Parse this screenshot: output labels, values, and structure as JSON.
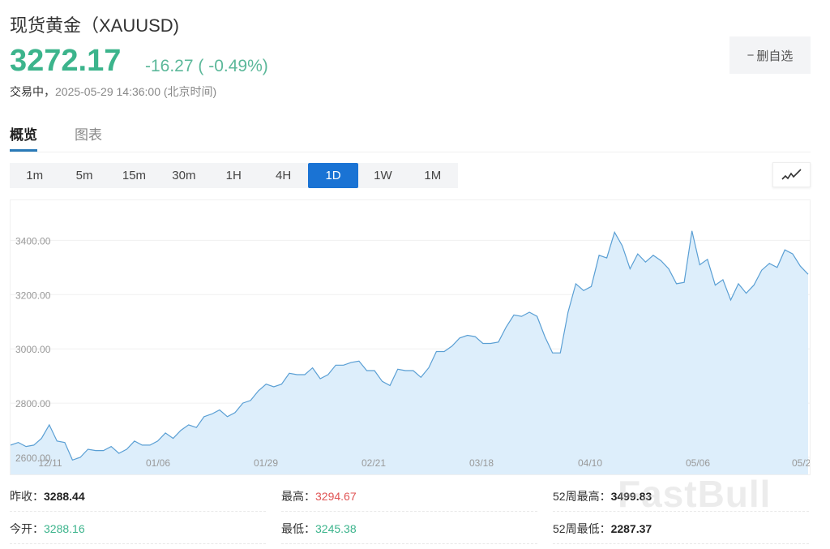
{
  "header": {
    "title": "现货黄金（XAUUSD)",
    "price": "3272.17",
    "change": "-16.27 ( -0.49%)",
    "status_label": "交易中，",
    "timestamp": "2025-05-29 14:36:00 (北京时间)",
    "watchlist_button": "删自选",
    "watchlist_icon": "minus-icon"
  },
  "tabs": [
    {
      "label": "概览",
      "active": true
    },
    {
      "label": "图表",
      "active": false
    }
  ],
  "periods": [
    "1m",
    "5m",
    "15m",
    "30m",
    "1H",
    "4H",
    "1D",
    "1W",
    "1M"
  ],
  "active_period": "1D",
  "chart_type_icon": "line-chart-icon",
  "colors": {
    "up": "#e05555",
    "down": "#3cb48c",
    "line": "#5a9fd4",
    "area": "#ddeefb",
    "active": "#1a73d4"
  },
  "chart_data": {
    "type": "area",
    "ylim": [
      2600,
      3500
    ],
    "y_ticks": [
      "2600.00",
      "2800.00",
      "3000.00",
      "3200.00",
      "3400.00"
    ],
    "y_tick_values": [
      2600,
      2800,
      3000,
      3200,
      3400
    ],
    "x_ticks": [
      "12/11",
      "01/06",
      "01/29",
      "02/21",
      "03/18",
      "04/10",
      "05/06",
      "05/2"
    ],
    "grid": true,
    "values": [
      2645,
      2655,
      2640,
      2645,
      2670,
      2720,
      2660,
      2655,
      2590,
      2600,
      2630,
      2625,
      2625,
      2640,
      2615,
      2630,
      2660,
      2645,
      2645,
      2660,
      2690,
      2670,
      2700,
      2720,
      2710,
      2750,
      2760,
      2775,
      2750,
      2765,
      2800,
      2810,
      2845,
      2870,
      2860,
      2870,
      2910,
      2905,
      2905,
      2930,
      2890,
      2905,
      2940,
      2940,
      2950,
      2955,
      2920,
      2920,
      2880,
      2865,
      2925,
      2920,
      2920,
      2895,
      2930,
      2990,
      2990,
      3010,
      3040,
      3050,
      3045,
      3020,
      3020,
      3025,
      3080,
      3125,
      3120,
      3135,
      3120,
      3045,
      2985,
      2985,
      3135,
      3240,
      3215,
      3230,
      3345,
      3335,
      3430,
      3380,
      3295,
      3350,
      3320,
      3345,
      3325,
      3295,
      3240,
      3245,
      3435,
      3310,
      3330,
      3235,
      3255,
      3180,
      3240,
      3205,
      3235,
      3290,
      3315,
      3300,
      3365,
      3350,
      3305,
      3275
    ]
  },
  "stats": [
    {
      "label": "昨收：",
      "value": "3288.44",
      "tone": "neutral"
    },
    {
      "label": "最高：",
      "value": "3294.67",
      "tone": "up"
    },
    {
      "label": "52周最高：",
      "value": "3499.83",
      "tone": "neutral"
    },
    {
      "label": "今开：",
      "value": "3288.16",
      "tone": "down"
    },
    {
      "label": "最低：",
      "value": "3245.38",
      "tone": "down"
    },
    {
      "label": "52周最低：",
      "value": "2287.37",
      "tone": "neutral"
    }
  ],
  "watermark": "FastBull"
}
